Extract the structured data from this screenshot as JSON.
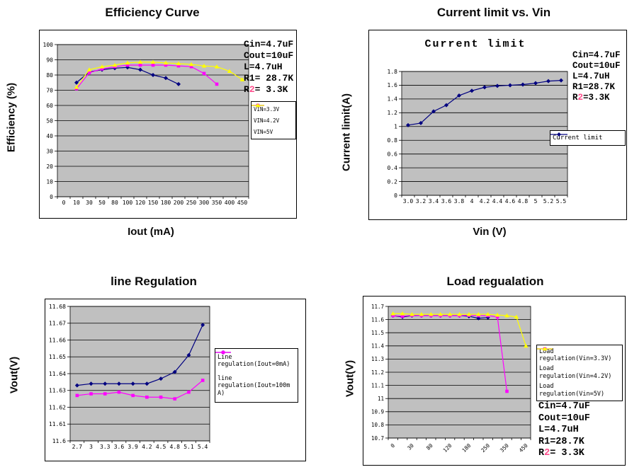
{
  "colors": {
    "navy": "#000080",
    "magenta": "#FF00FF",
    "yellow": "#FFFF00",
    "plot_background": "#C0C0C0",
    "gridline": "#000000",
    "r2_digit": "#ff4d8c"
  },
  "chart_data": [
    {
      "type": "line",
      "title": "Efficiency Curve",
      "xlabel": "Iout (mA)",
      "ylabel": "Efficiency (%)",
      "categories": [
        "0",
        "10",
        "30",
        "50",
        "80",
        "100",
        "120",
        "150",
        "180",
        "200",
        "250",
        "300",
        "350",
        "400",
        "450"
      ],
      "ylim": [
        0,
        100
      ],
      "ytick_labels": [
        "100",
        "90",
        "80",
        "70",
        "60",
        "50",
        "40",
        "30",
        "20",
        "10",
        "0"
      ],
      "grid": true,
      "legend_position": "right",
      "annotation": [
        "Cin=4.7uF",
        "Cout=10uF",
        "L=4.7uH",
        "R1= 28.7K",
        "R2= 3.3K"
      ],
      "series": [
        {
          "name": "VIN=3.3V",
          "legend_lines": [
            "VIN=3.3V"
          ],
          "color": "#000080",
          "marker": "diamond",
          "values": [
            null,
            75,
            82,
            83.5,
            84.5,
            85,
            83.5,
            80,
            78,
            74,
            null,
            null,
            null,
            null,
            null
          ]
        },
        {
          "name": "VIN=4.2V",
          "legend_lines": [
            "VIN=4.2V"
          ],
          "color": "#FF00FF",
          "marker": "square",
          "values": [
            null,
            71,
            81.5,
            84,
            85.5,
            86.5,
            86.5,
            86.5,
            86.5,
            86,
            85.5,
            81,
            74,
            null,
            null
          ]
        },
        {
          "name": "VIN=5V",
          "legend_lines": [
            "VIN=5V"
          ],
          "color": "#FFFF00",
          "marker": "triangle",
          "values": [
            null,
            72,
            83.5,
            85.5,
            86.5,
            88,
            88.5,
            88.5,
            88,
            87.5,
            87,
            86,
            85.5,
            82.5,
            77
          ]
        }
      ]
    },
    {
      "type": "line",
      "title": "Current limit vs. Vin",
      "inner_title": "Current limit",
      "xlabel": "Vin (V)",
      "ylabel": "Current limit(A)",
      "categories": [
        "3.0",
        "3.2",
        "3.4",
        "3.6",
        "3.8",
        "4",
        "4.2",
        "4.4",
        "4.6",
        "4.8",
        "5",
        "5.2",
        "5.5"
      ],
      "ylim": [
        0,
        1.8
      ],
      "ytick_labels": [
        "1.8",
        "1.6",
        "1.4",
        "1.2",
        "1",
        "0.8",
        "0.6",
        "0.4",
        "0.2",
        "0"
      ],
      "grid": true,
      "legend_position": "right",
      "annotation": [
        "Cin=4.7uF",
        "Cout=10uF",
        "L=4.7uH",
        "R1=28.7K",
        "R2=3.3K"
      ],
      "series": [
        {
          "name": "Current limit",
          "legend_lines": [
            "Current limit"
          ],
          "color": "#000080",
          "marker": "diamond",
          "values": [
            1.02,
            1.05,
            1.22,
            1.31,
            1.45,
            1.52,
            1.57,
            1.59,
            1.6,
            1.61,
            1.63,
            1.66,
            1.67
          ]
        }
      ]
    },
    {
      "type": "line",
      "title": "line Regulation",
      "ylabel": "Vout(V)",
      "categories": [
        "2.7",
        "3",
        "3.3",
        "3.6",
        "3.9",
        "4.2",
        "4.5",
        "4.8",
        "5.1",
        "5.4"
      ],
      "ylim": [
        11.6,
        11.68
      ],
      "ytick_labels": [
        "11.68",
        "11.67",
        "11.66",
        "11.65",
        "11.64",
        "11.63",
        "11.62",
        "11.61",
        "11.6"
      ],
      "grid": true,
      "legend_position": "right",
      "series": [
        {
          "name": "Line regulation(Iout=0mA)",
          "legend_lines": [
            "Line",
            "regulation(Iout=0mA)"
          ],
          "color": "#000080",
          "marker": "diamond",
          "values": [
            11.633,
            11.634,
            11.634,
            11.634,
            11.634,
            11.634,
            11.637,
            11.641,
            11.651,
            11.669
          ]
        },
        {
          "name": "line regulation(Iout=100mA)",
          "legend_lines": [
            "line",
            "regulation(Iout=100m",
            "A)"
          ],
          "color": "#FF00FF",
          "marker": "square",
          "values": [
            11.627,
            11.628,
            11.628,
            11.629,
            11.627,
            11.626,
            11.626,
            11.625,
            11.629,
            11.636
          ]
        }
      ]
    },
    {
      "type": "line",
      "title": "Load regualation",
      "ylabel": "Vout(V)",
      "categories": [
        "0",
        "10",
        "30",
        "50",
        "80",
        "100",
        "120",
        "150",
        "180",
        "200",
        "250",
        "300",
        "350",
        "400",
        "450"
      ],
      "xtick_show_every": 2,
      "xtick_rotated": true,
      "ylim": [
        10.7,
        11.7
      ],
      "ytick_labels": [
        "11.7",
        "11.6",
        "11.5",
        "11.4",
        "11.3",
        "11.2",
        "11.1",
        "11",
        "10.9",
        "10.8",
        "10.7"
      ],
      "grid": true,
      "legend_position": "right",
      "annotation": [
        "Cin=4.7uF",
        "Cout=10uF",
        "L=4.7uH",
        "R1=28.7K",
        "R2= 3.3K"
      ],
      "series": [
        {
          "name": "Load regulation(Vin=3.3V)",
          "legend_lines": [
            "Load",
            "regulation(Vin=3.3V)"
          ],
          "color": "#000080",
          "marker": "diamond",
          "values": [
            11.63,
            11.62,
            11.63,
            11.63,
            11.63,
            11.63,
            11.63,
            11.63,
            11.625,
            11.61,
            11.615,
            null,
            null,
            null,
            null
          ]
        },
        {
          "name": "Load regulation(Vin=4.2V)",
          "legend_lines": [
            "Load",
            "regulation(Vin=4.2V)"
          ],
          "color": "#FF00FF",
          "marker": "square",
          "values": [
            11.63,
            11.625,
            11.632,
            11.63,
            11.63,
            11.63,
            11.63,
            11.63,
            11.632,
            11.63,
            11.63,
            11.62,
            11.055,
            null,
            null
          ]
        },
        {
          "name": "Load regulation(Vin=5V)",
          "legend_lines": [
            "Load",
            "regulation(Vin=5V)"
          ],
          "color": "#FFFF00",
          "marker": "triangle",
          "values": [
            11.645,
            11.645,
            11.64,
            11.64,
            11.64,
            11.64,
            11.64,
            11.64,
            11.64,
            11.64,
            11.64,
            11.635,
            11.63,
            11.62,
            11.4
          ]
        }
      ]
    }
  ]
}
